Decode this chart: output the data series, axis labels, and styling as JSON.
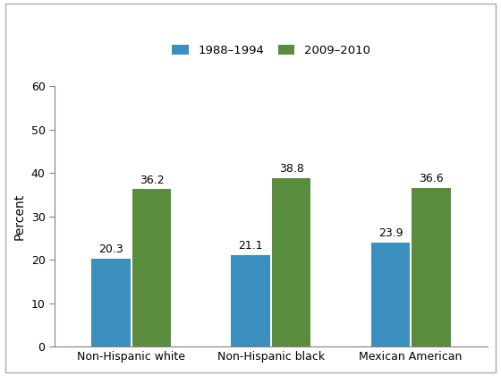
{
  "categories": [
    "Non-Hispanic white",
    "Non-Hispanic black",
    "Mexican American"
  ],
  "series": [
    {
      "label": "1988–1994",
      "values": [
        20.3,
        21.1,
        23.9
      ],
      "color": "#3a8fbf"
    },
    {
      "label": "2009–2010",
      "values": [
        36.2,
        38.8,
        36.6
      ],
      "color": "#5a8c3e"
    }
  ],
  "ylabel": "Percent",
  "ylim": [
    0,
    60
  ],
  "yticks": [
    0,
    10,
    20,
    30,
    40,
    50,
    60
  ],
  "bar_width": 0.28,
  "group_positions": [
    0.25,
    0.75,
    1.25
  ],
  "background_color": "#ffffff",
  "spine_color": "#808080",
  "legend_fontsize": 9.5,
  "axis_fontsize": 10,
  "tick_fontsize": 9,
  "label_fontsize": 9
}
